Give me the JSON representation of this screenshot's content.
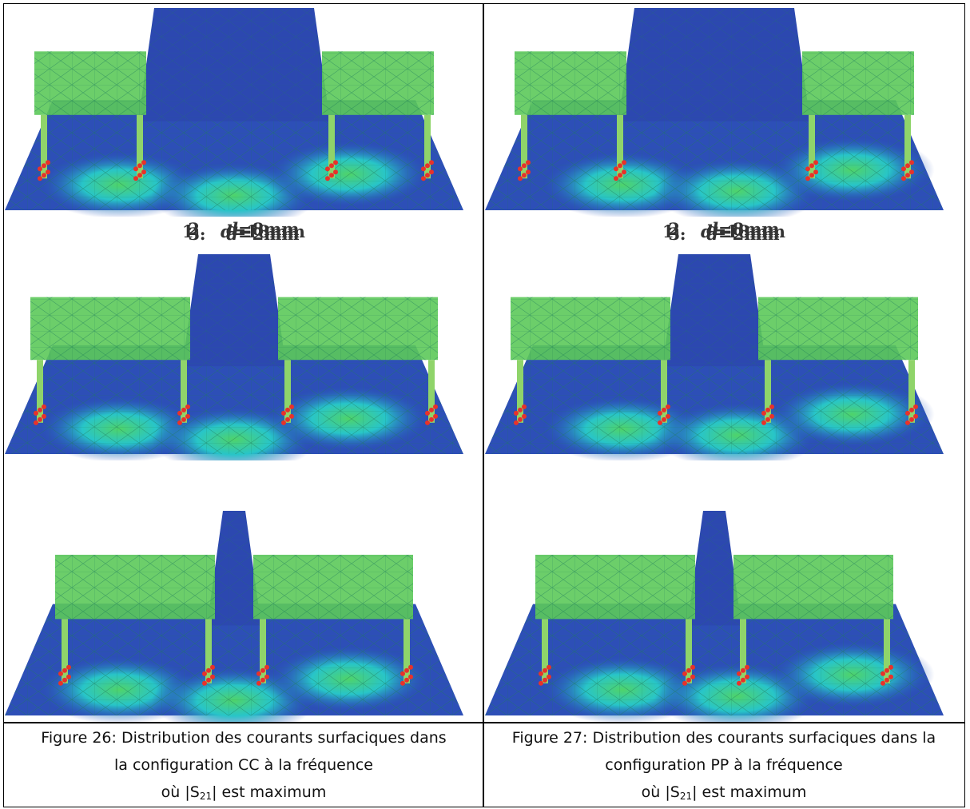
{
  "figures": [
    {
      "panels": [
        {
          "number": "1.",
          "variable": "d",
          "value": "=18mm"
        },
        {
          "number": "2.",
          "variable": "d",
          "value": "=8mm"
        },
        {
          "number": "3.",
          "variable": "d",
          "value": "=2mm"
        }
      ],
      "caption": {
        "lines": [
          "Figure 26: Distribution des courants surfaciques dans",
          "la configuration CC à la fréquence"
        ],
        "last_line": {
          "before": "où |S",
          "sub": "21",
          "after": "| est maximum"
        }
      }
    },
    {
      "panels": [
        {
          "number": "1.",
          "variable": "d",
          "value": "=18mm"
        },
        {
          "number": "2.",
          "variable": "d",
          "value": "=8mm"
        },
        {
          "number": "3.",
          "variable": "d",
          "value": "=2mm"
        }
      ],
      "caption": {
        "lines": [
          "Figure 27: Distribution des courants surfaciques dans la",
          "configuration PP à la fréquence"
        ],
        "last_line": {
          "before": "où |S",
          "sub": "21",
          "after": "| est maximum"
        }
      }
    }
  ]
}
